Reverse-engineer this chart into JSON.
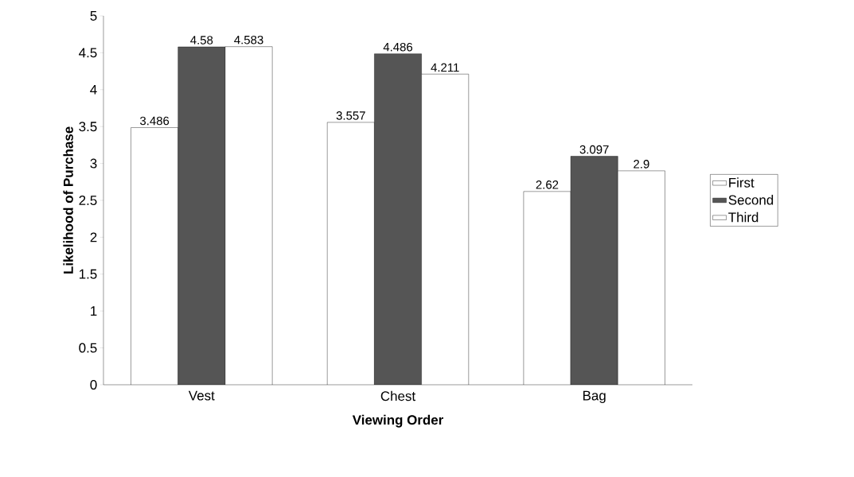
{
  "chart_data": {
    "type": "bar",
    "xlabel": "Viewing Order",
    "ylabel": "Likelihood of Purchase",
    "categories": [
      "Vest",
      "Chest",
      "Bag"
    ],
    "series": [
      {
        "name": "First",
        "color": "#ffffff",
        "values": [
          3.486,
          3.557,
          2.62
        ]
      },
      {
        "name": "Second",
        "color": "#555555",
        "values": [
          4.58,
          4.486,
          3.097
        ]
      },
      {
        "name": "Third",
        "color": "#ffffff",
        "values": [
          4.583,
          4.211,
          2.9
        ]
      }
    ],
    "ylim": [
      0,
      5
    ],
    "yticks": [
      0,
      0.5,
      1,
      1.5,
      2,
      2.5,
      3,
      3.5,
      4,
      4.5,
      5
    ],
    "data_labels": true,
    "legend": "right",
    "grid": false
  }
}
